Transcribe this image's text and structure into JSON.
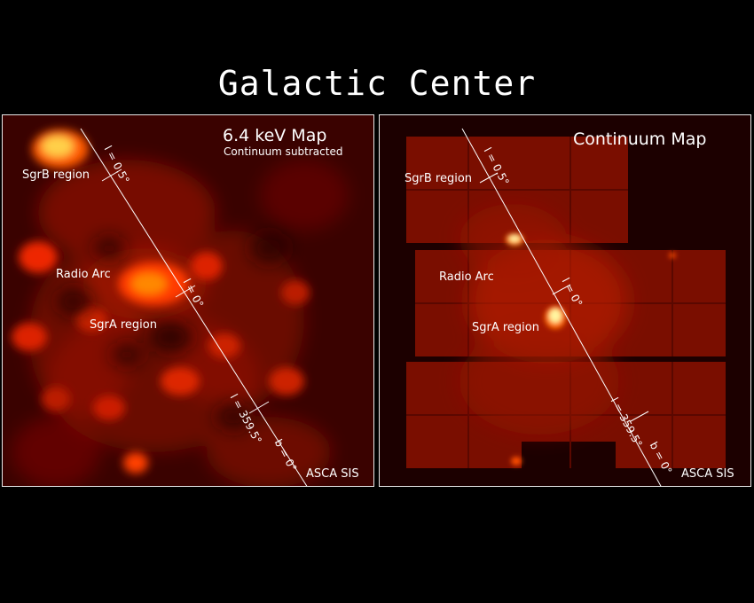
{
  "title": "Galactic Center",
  "left_map": {
    "title": "6.4 keV Map",
    "subtitle": "Continuum subtracted",
    "labels": {
      "sgrb": "SgrB region",
      "radio_arc": "Radio Arc",
      "sgra": "SgrA region"
    },
    "axis_labels": {
      "l_05": "l = 0.5°",
      "l_0": "l = 0°",
      "l_3595": "l = 359.5°",
      "b_0": "b = 0°"
    },
    "instrument": "ASCA SIS"
  },
  "right_map": {
    "title": "Continuum Map",
    "labels": {
      "sgrb": "SgrB region",
      "radio_arc": "Radio Arc",
      "sgra": "SgrA region"
    },
    "axis_labels": {
      "l_05": "l = 0.5°",
      "l_0": "l = 0°",
      "l_3595": "l = 359.5°",
      "b_0": "b = 0°"
    },
    "instrument": "ASCA SIS"
  },
  "colors": {
    "background": "#000000",
    "map_dark": "#3a0200",
    "map_glow": "#ff3000",
    "map_peak": "#fff6a0",
    "frame": "#e8e8e8"
  }
}
